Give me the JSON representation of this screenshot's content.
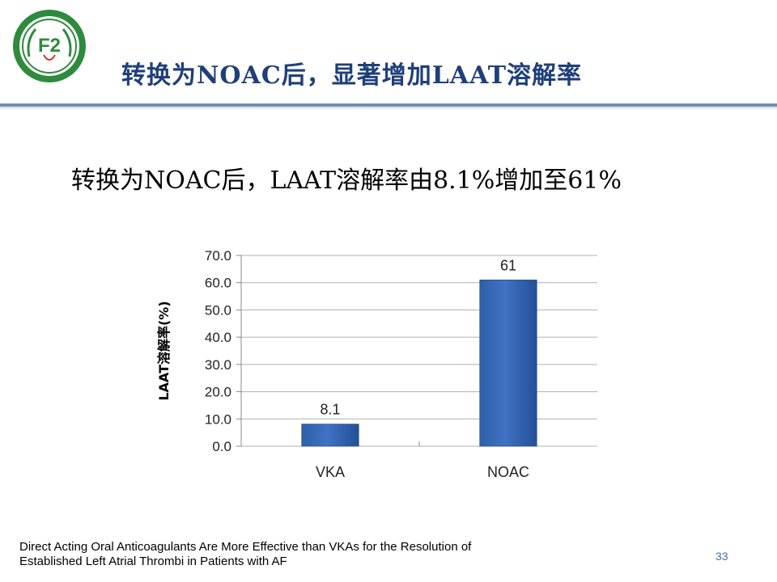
{
  "slide": {
    "title": "转换为NOAC后，显著增加LAAT溶解率",
    "subtitle": "转换为NOAC后，LAAT溶解率由8.1%增加至61%",
    "source_line1": "Direct Acting Oral Anticoagulants Are More Effective than VKAs for the Resolution of",
    "source_line2": "Established Left Atrial Thrombi in Patients with AF",
    "page_number": "33"
  },
  "colors": {
    "title": "#1f3f7a",
    "rule": "#6b8fb3",
    "bar": "#3f73c4",
    "logo_green": "#2e8b3e"
  },
  "chart_data": {
    "type": "bar",
    "categories": [
      "VKA",
      "NOAC"
    ],
    "values": [
      8.1,
      61
    ],
    "data_labels": [
      "8.1",
      "61"
    ],
    "ylabel": "LAAT溶解率(%)",
    "xlabel": "",
    "title": "",
    "ylim": [
      0,
      70
    ],
    "yticks": [
      0,
      10,
      20,
      30,
      40,
      50,
      60,
      70
    ],
    "ytick_labels": [
      "0.0",
      "10.0",
      "20.0",
      "30.0",
      "40.0",
      "50.0",
      "60.0",
      "70.0"
    ],
    "grid": true,
    "legend": "none"
  }
}
